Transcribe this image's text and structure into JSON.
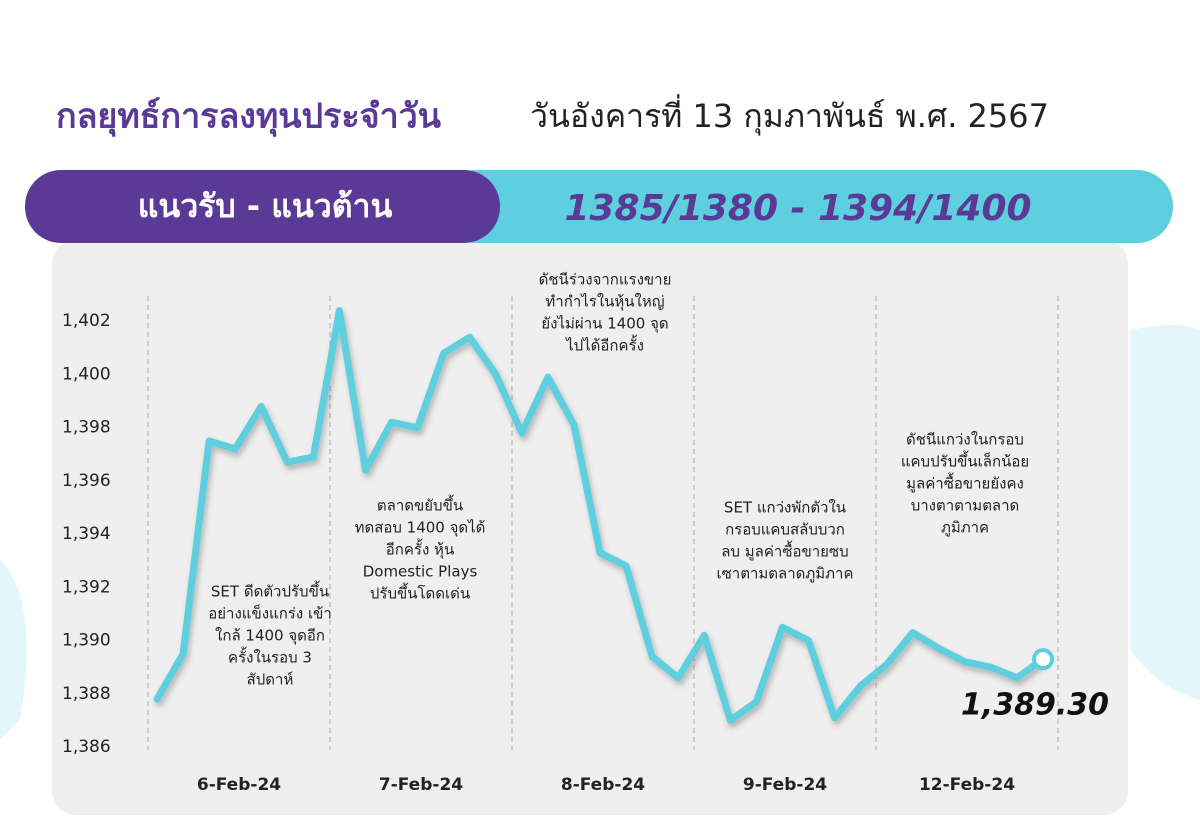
{
  "chart_data": {
    "type": "line",
    "title": "กลยุทธ์การลงทุนประจำวัน",
    "subtitle": "วันอังคารที่ 13 กุมภาพันธ์ พ.ศ. 2567",
    "banner_label": "แนวรับ - แนวต้าน",
    "banner_value": "1385/1380 - 1394/1400",
    "categories": [
      "6-Feb-24",
      "7-Feb-24",
      "8-Feb-24",
      "9-Feb-24",
      "12-Feb-24"
    ],
    "values": [
      [
        1387.8,
        1389.5,
        1397.5,
        1397.2,
        1398.8,
        1396.7,
        1396.9
      ],
      [
        1402.4,
        1396.4,
        1398.2,
        1398.0,
        1400.8,
        1401.4,
        1400.0
      ],
      [
        1397.8,
        1399.9,
        1398.1,
        1393.3,
        1392.8,
        1389.4,
        1388.6
      ],
      [
        1390.2,
        1387.0,
        1387.7,
        1390.5,
        1390.0,
        1387.1,
        1388.3
      ],
      [
        1389.1,
        1390.3,
        1389.7,
        1389.2,
        1389.0,
        1388.6,
        1389.3
      ]
    ],
    "last_value_label": "1,389.30",
    "color": "#5ecfdf",
    "ylim": [
      1386,
      1404
    ],
    "yticks": [
      {
        "value": 1386,
        "label": "1,386"
      },
      {
        "value": 1388,
        "label": "1,388"
      },
      {
        "value": 1390,
        "label": "1,390"
      },
      {
        "value": 1392,
        "label": "1,392"
      },
      {
        "value": 1394,
        "label": "1,394"
      },
      {
        "value": 1396,
        "label": "1,396"
      },
      {
        "value": 1398,
        "label": "1,398"
      },
      {
        "value": 1400,
        "label": "1,400"
      },
      {
        "value": 1402,
        "label": "1,402"
      }
    ],
    "annotations": [
      [
        "SET ดีดตัวปรับขึ้น",
        "อย่างแข็งแกร่ง เข้า",
        "ใกล้ 1400 จุดอีก",
        "ครั้งในรอบ 3",
        "สัปดาห์"
      ],
      [
        "ตลาดขยับขึ้น",
        "ทดสอบ 1400 จุดได้",
        "อีกครั้ง หุ้น",
        "Domestic Plays",
        "ปรับขึ้นโดดเด่น"
      ],
      [
        "ดัชนีร่วงจากแรงขาย",
        "ทำกำไรในหุ้นใหญ่",
        "ยังไม่ผ่าน 1400 จุด",
        "ไปได้อีกครั้ง"
      ],
      [
        "SET แกว่งพักตัวใน",
        "กรอบแคบสลับบวก",
        "ลบ มูลค่าซื้อขายซบ",
        "เซาตามตลาดภูมิภาค"
      ],
      [
        "ดัชนีแกว่งในกรอบ",
        "แคบปรับขึ้นเล็กน้อย",
        "มูลค่าซื้อขายยังคง",
        "บางตาตามตลาด",
        "ภูมิภาค"
      ]
    ]
  }
}
